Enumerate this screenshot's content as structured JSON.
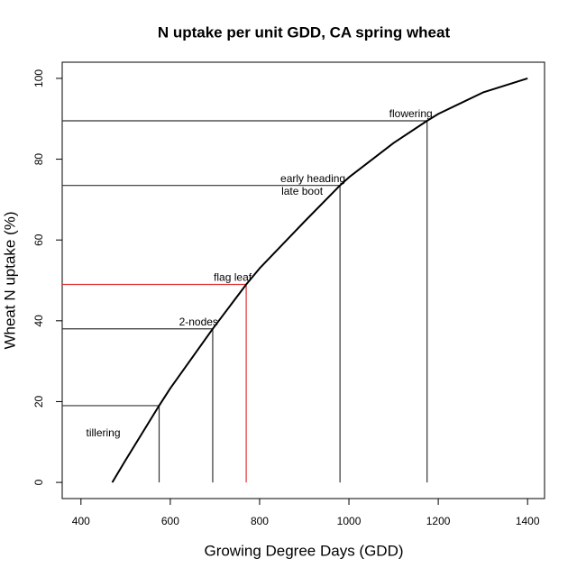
{
  "chart_data": {
    "type": "line",
    "title": "N uptake per unit GDD, CA spring wheat",
    "x_label": "Growing Degree Days (GDD)",
    "y_label": "Wheat N uptake (%)",
    "x": [
      470,
      500,
      575,
      600,
      695,
      770,
      800,
      900,
      980,
      1000,
      1100,
      1175,
      1200,
      1300,
      1400
    ],
    "values": [
      0,
      5.5,
      19,
      23.3,
      38,
      49,
      53,
      64.5,
      73.5,
      75.5,
      84,
      89.5,
      91.2,
      96.5,
      100
    ],
    "color": "#000000",
    "xlim": [
      358,
      1438
    ],
    "ylim": [
      -4,
      104
    ],
    "xticks": [
      400,
      600,
      800,
      1000,
      1200,
      1400
    ],
    "yticks": [
      0,
      20,
      40,
      60,
      80,
      100
    ],
    "stages": [
      {
        "labels": [
          "tillering"
        ],
        "x": 575,
        "y": 19,
        "color": "#333333"
      },
      {
        "labels": [
          "2-nodes"
        ],
        "x": 695,
        "y": 38,
        "color": "#333333"
      },
      {
        "labels": [
          "flag leaf"
        ],
        "x": 770,
        "y": 49,
        "color": "#e03030"
      },
      {
        "labels": [
          "early heading",
          "late boot"
        ],
        "x": 980,
        "y": 73.5,
        "color": "#333333"
      },
      {
        "labels": [
          "flowering"
        ],
        "x": 1175,
        "y": 89.5,
        "color": "#333333"
      }
    ]
  }
}
